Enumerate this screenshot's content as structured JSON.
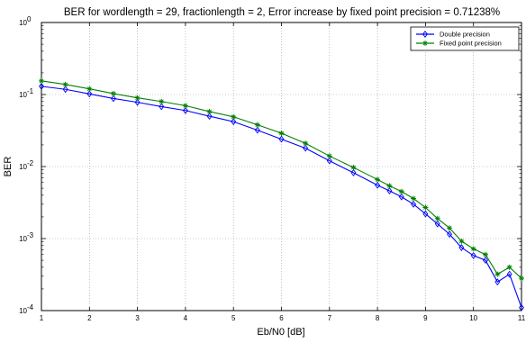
{
  "chart_data": {
    "type": "line",
    "title": "BER for wordlength = 29, fractionlength = 2, Error increase by fixed point precision = 0.71238%",
    "xlabel": "Eb/N0 [dB]",
    "ylabel": "BER",
    "xlim": [
      1,
      11
    ],
    "ylim": [
      0.0001,
      1
    ],
    "yscale": "log",
    "grid": true,
    "legend_position": "top-right",
    "x_ticks": [
      1,
      2,
      3,
      4,
      5,
      6,
      7,
      8,
      9,
      10,
      11
    ],
    "x_tick_labels": [
      "1",
      "2",
      "3",
      "4",
      "5",
      "6",
      "7",
      "8",
      "9",
      "10",
      "11"
    ],
    "y_ticks": [
      0.0001,
      0.001,
      0.01,
      0.1,
      1
    ],
    "y_tick_labels": [
      {
        "base": "10",
        "exp": "-4"
      },
      {
        "base": "10",
        "exp": "-3"
      },
      {
        "base": "10",
        "exp": "-2"
      },
      {
        "base": "10",
        "exp": "-1"
      },
      {
        "base": "10",
        "exp": "0"
      }
    ],
    "x": [
      1,
      1.5,
      2,
      2.5,
      3,
      3.5,
      4,
      4.5,
      5,
      5.5,
      6,
      6.5,
      7,
      7.5,
      8,
      8.25,
      8.5,
      8.75,
      9,
      9.25,
      9.5,
      9.75,
      10,
      10.25,
      10.5,
      10.75,
      11
    ],
    "series": [
      {
        "name": "Double precision",
        "color": "#0000ff",
        "marker": "diamond",
        "values": [
          0.13,
          0.118,
          0.102,
          0.088,
          0.078,
          0.068,
          0.06,
          0.05,
          0.042,
          0.032,
          0.024,
          0.018,
          0.012,
          0.0082,
          0.0055,
          0.0046,
          0.0038,
          0.003,
          0.0022,
          0.0016,
          0.00115,
          0.00075,
          0.00058,
          0.0005,
          0.00025,
          0.00032,
          0.00011
        ]
      },
      {
        "name": "Fixed point precision",
        "color": "#008000",
        "marker": "star",
        "values": [
          0.155,
          0.138,
          0.12,
          0.103,
          0.09,
          0.08,
          0.07,
          0.058,
          0.049,
          0.038,
          0.029,
          0.021,
          0.014,
          0.0097,
          0.0066,
          0.0054,
          0.0045,
          0.0036,
          0.0027,
          0.0019,
          0.0014,
          0.00092,
          0.00072,
          0.0006,
          0.00032,
          0.0004,
          0.00028
        ]
      }
    ]
  }
}
